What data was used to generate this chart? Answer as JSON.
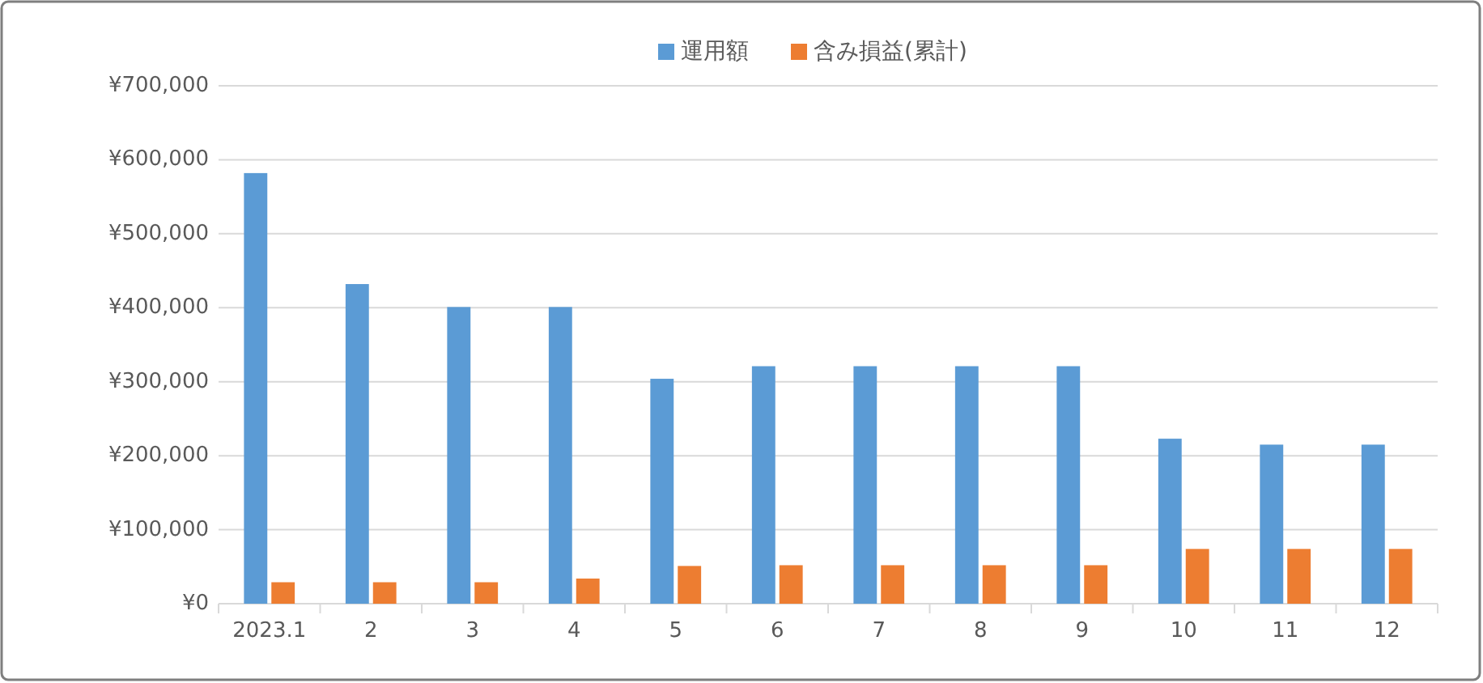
{
  "chart_data": {
    "type": "bar",
    "categories": [
      "2023.1",
      "2",
      "3",
      "4",
      "5",
      "6",
      "7",
      "8",
      "9",
      "10",
      "11",
      "12"
    ],
    "series": [
      {
        "name": "運用額",
        "color": "#5b9bd5",
        "values": [
          582000,
          432000,
          401000,
          401000,
          304000,
          321000,
          321000,
          321000,
          321000,
          223000,
          215000,
          215000
        ]
      },
      {
        "name": "含み損益(累計)",
        "color": "#ed7d31",
        "values": [
          29000,
          29000,
          29000,
          34000,
          51000,
          52000,
          52000,
          52000,
          52000,
          74000,
          74000,
          74000
        ]
      }
    ],
    "ylim": [
      0,
      700000
    ],
    "yticks": [
      {
        "value": 0,
        "label": "¥0"
      },
      {
        "value": 100000,
        "label": "¥100,000"
      },
      {
        "value": 200000,
        "label": "¥200,000"
      },
      {
        "value": 300000,
        "label": "¥300,000"
      },
      {
        "value": 400000,
        "label": "¥400,000"
      },
      {
        "value": 500000,
        "label": "¥500,000"
      },
      {
        "value": 600000,
        "label": "¥600,000"
      },
      {
        "value": 700000,
        "label": "¥700,000"
      }
    ],
    "grid": "y",
    "legend": "top"
  }
}
